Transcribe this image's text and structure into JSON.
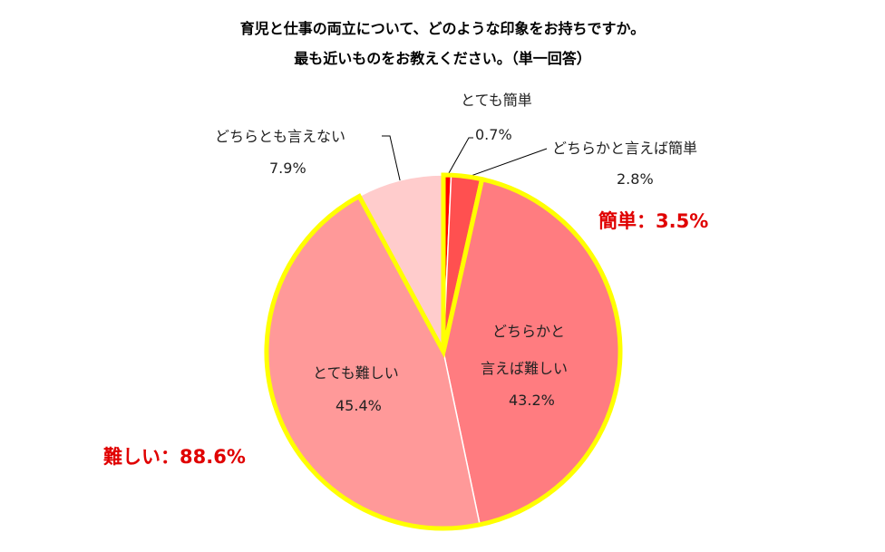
{
  "chart_data": {
    "type": "pie",
    "title_lines": [
      "育児と仕事の両立について、どのような印象をお持ちですか。",
      "最も近いものをお教えください。（単一回答）"
    ],
    "slices": [
      {
        "label": "とても簡単",
        "value": 0.7,
        "value_label": "0.7%",
        "color": "#ff0000"
      },
      {
        "label": "どちらかと言えば簡単",
        "value": 2.8,
        "value_label": "2.8%",
        "color": "#ff5050"
      },
      {
        "label_lines": [
          "どちらかと",
          "言えば難しい"
        ],
        "value": 43.2,
        "value_label": "43.2%",
        "color": "#ff7c80"
      },
      {
        "label": "とても難しい",
        "value": 45.4,
        "value_label": "45.4%",
        "color": "#ff9999"
      },
      {
        "label": "どちらとも言えない",
        "value": 7.9,
        "value_label": "7.9%",
        "color": "#ffcccc"
      }
    ],
    "start_angle_deg": 0,
    "direction": "clockwise",
    "group_outline_color": "#ffff00",
    "summaries": [
      {
        "text": "簡単：3.5%",
        "color": "#e00000"
      },
      {
        "text": "難しい：88.6%",
        "color": "#e00000"
      }
    ]
  }
}
